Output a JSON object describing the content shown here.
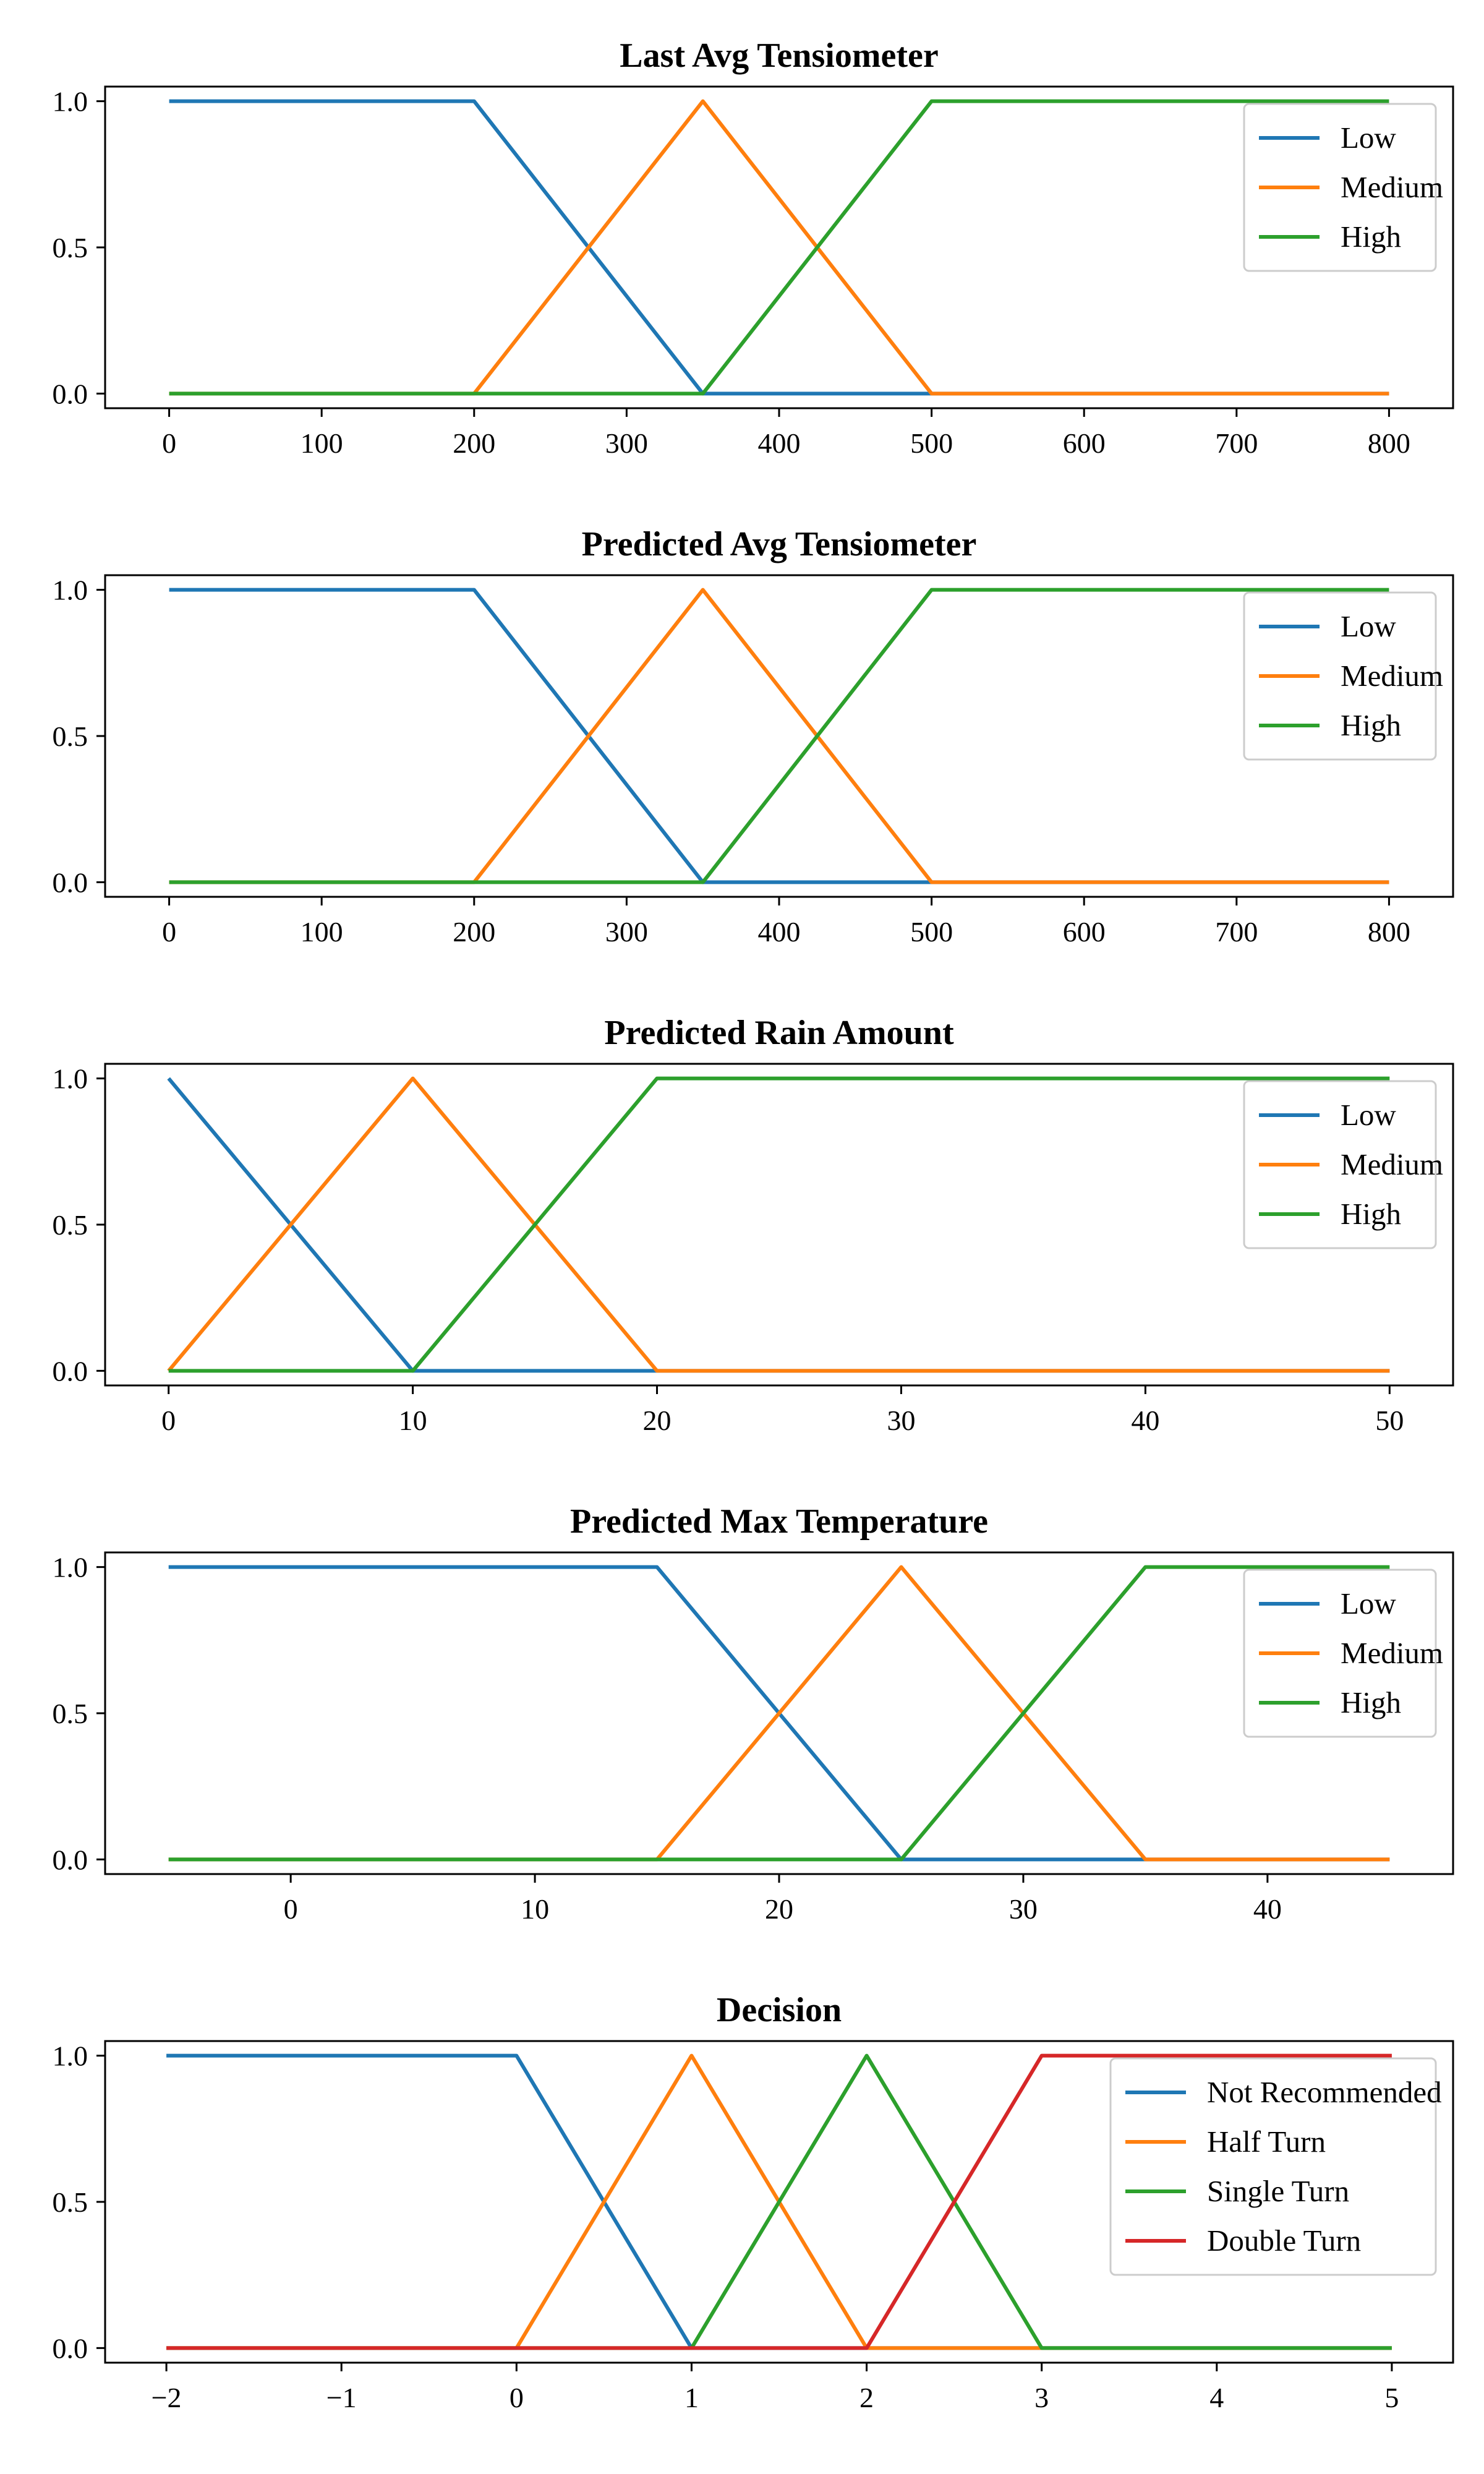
{
  "colors": {
    "blue": "#1f77b4",
    "orange": "#ff7f0e",
    "green": "#2ca02c",
    "red": "#d62728"
  },
  "chart_data": [
    {
      "type": "line",
      "title": "Last Avg Tensiometer",
      "xlim": [
        -42,
        842
      ],
      "ylim": [
        -0.05,
        1.05
      ],
      "xticks": [
        0,
        100,
        200,
        300,
        400,
        500,
        600,
        700,
        800
      ],
      "xtick_labels": [
        "0",
        "100",
        "200",
        "300",
        "400",
        "500",
        "600",
        "700",
        "800"
      ],
      "yticks": [
        0.0,
        0.5,
        1.0
      ],
      "ytick_labels": [
        "0.0",
        "0.5",
        "1.0"
      ],
      "grid": false,
      "legend": "top-right",
      "series": [
        {
          "name": "Low",
          "color": "#1f77b4",
          "x": [
            0,
            200,
            350,
            500,
            800
          ],
          "y": [
            1,
            1,
            0,
            0,
            0
          ]
        },
        {
          "name": "Medium",
          "color": "#ff7f0e",
          "x": [
            0,
            200,
            350,
            500,
            800
          ],
          "y": [
            0,
            0,
            1,
            0,
            0
          ]
        },
        {
          "name": "High",
          "color": "#2ca02c",
          "x": [
            0,
            350,
            500,
            800
          ],
          "y": [
            0,
            0,
            1,
            1
          ]
        }
      ]
    },
    {
      "type": "line",
      "title": "Predicted Avg Tensiometer",
      "xlim": [
        -42,
        842
      ],
      "ylim": [
        -0.05,
        1.05
      ],
      "xticks": [
        0,
        100,
        200,
        300,
        400,
        500,
        600,
        700,
        800
      ],
      "xtick_labels": [
        "0",
        "100",
        "200",
        "300",
        "400",
        "500",
        "600",
        "700",
        "800"
      ],
      "yticks": [
        0.0,
        0.5,
        1.0
      ],
      "ytick_labels": [
        "0.0",
        "0.5",
        "1.0"
      ],
      "grid": false,
      "legend": "top-right",
      "series": [
        {
          "name": "Low",
          "color": "#1f77b4",
          "x": [
            0,
            200,
            350,
            500,
            800
          ],
          "y": [
            1,
            1,
            0,
            0,
            0
          ]
        },
        {
          "name": "Medium",
          "color": "#ff7f0e",
          "x": [
            0,
            200,
            350,
            500,
            800
          ],
          "y": [
            0,
            0,
            1,
            0,
            0
          ]
        },
        {
          "name": "High",
          "color": "#2ca02c",
          "x": [
            0,
            350,
            500,
            800
          ],
          "y": [
            0,
            0,
            1,
            1
          ]
        }
      ]
    },
    {
      "type": "line",
      "title": "Predicted Rain Amount",
      "xlim": [
        -2.6,
        52.6
      ],
      "ylim": [
        -0.05,
        1.05
      ],
      "xticks": [
        0,
        10,
        20,
        30,
        40,
        50
      ],
      "xtick_labels": [
        "0",
        "10",
        "20",
        "30",
        "40",
        "50"
      ],
      "yticks": [
        0.0,
        0.5,
        1.0
      ],
      "ytick_labels": [
        "0.0",
        "0.5",
        "1.0"
      ],
      "grid": false,
      "legend": "top-right",
      "series": [
        {
          "name": "Low",
          "color": "#1f77b4",
          "x": [
            0,
            10,
            50
          ],
          "y": [
            1,
            0,
            0
          ]
        },
        {
          "name": "Medium",
          "color": "#ff7f0e",
          "x": [
            0,
            10,
            20,
            50
          ],
          "y": [
            0,
            1,
            0,
            0
          ]
        },
        {
          "name": "High",
          "color": "#2ca02c",
          "x": [
            0,
            10,
            20,
            50
          ],
          "y": [
            0,
            0,
            1,
            1
          ]
        }
      ]
    },
    {
      "type": "line",
      "title": "Predicted Max Temperature",
      "xlim": [
        -7.6,
        47.6
      ],
      "ylim": [
        -0.05,
        1.05
      ],
      "xticks": [
        0,
        10,
        20,
        30,
        40
      ],
      "xtick_labels": [
        "0",
        "10",
        "20",
        "30",
        "40"
      ],
      "yticks": [
        0.0,
        0.5,
        1.0
      ],
      "ytick_labels": [
        "0.0",
        "0.5",
        "1.0"
      ],
      "grid": false,
      "legend": "top-right",
      "series": [
        {
          "name": "Low",
          "color": "#1f77b4",
          "x": [
            -5,
            15,
            25,
            45
          ],
          "y": [
            1,
            1,
            0,
            0
          ]
        },
        {
          "name": "Medium",
          "color": "#ff7f0e",
          "x": [
            -5,
            15,
            25,
            35,
            45
          ],
          "y": [
            0,
            0,
            1,
            0,
            0
          ]
        },
        {
          "name": "High",
          "color": "#2ca02c",
          "x": [
            -5,
            25,
            35,
            45
          ],
          "y": [
            0,
            0,
            1,
            1
          ]
        }
      ]
    },
    {
      "type": "line",
      "title": "Decision",
      "xlim": [
        -2.35,
        5.35
      ],
      "ylim": [
        -0.05,
        1.05
      ],
      "xticks": [
        -2,
        -1,
        0,
        1,
        2,
        3,
        4,
        5
      ],
      "xtick_labels": [
        "−2",
        "−1",
        "0",
        "1",
        "2",
        "3",
        "4",
        "5"
      ],
      "yticks": [
        0.0,
        0.5,
        1.0
      ],
      "ytick_labels": [
        "0.0",
        "0.5",
        "1.0"
      ],
      "grid": false,
      "legend": "top-right",
      "series": [
        {
          "name": "Not Recommended",
          "color": "#1f77b4",
          "x": [
            -2,
            0,
            1,
            5
          ],
          "y": [
            1,
            1,
            0,
            0
          ]
        },
        {
          "name": "Half Turn",
          "color": "#ff7f0e",
          "x": [
            -2,
            0,
            1,
            2,
            5
          ],
          "y": [
            0,
            0,
            1,
            0,
            0
          ]
        },
        {
          "name": "Single Turn",
          "color": "#2ca02c",
          "x": [
            -2,
            1,
            2,
            3,
            5
          ],
          "y": [
            0,
            0,
            1,
            0,
            0
          ]
        },
        {
          "name": "Double Turn",
          "color": "#d62728",
          "x": [
            -2,
            2,
            3,
            5
          ],
          "y": [
            0,
            0,
            1,
            1
          ]
        }
      ]
    }
  ]
}
